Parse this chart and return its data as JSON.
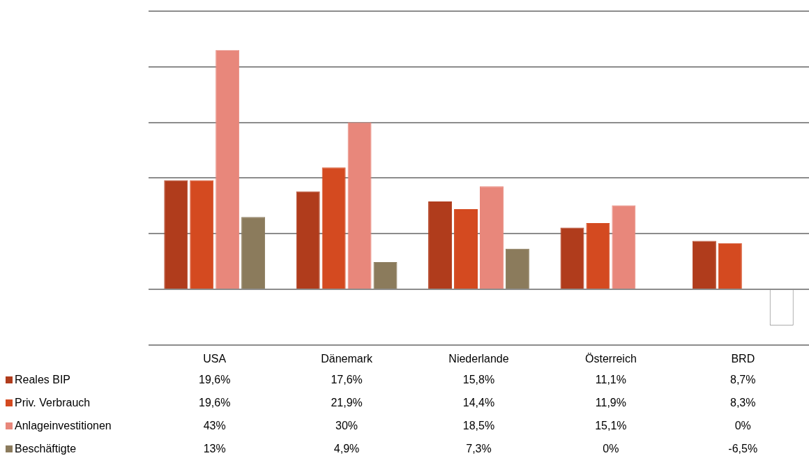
{
  "chart_data": {
    "type": "bar",
    "categories": [
      "USA",
      "Dänemark",
      "Niederlande",
      "Österreich",
      "BRD"
    ],
    "series": [
      {
        "name": "Reales BIP",
        "color": "#b03c1c",
        "values": [
          19.6,
          17.6,
          15.8,
          11.1,
          8.7
        ],
        "value_labels": [
          "19,6%",
          "17,6%",
          "15,8%",
          "11,1%",
          "8,7%"
        ]
      },
      {
        "name": "Priv. Verbrauch",
        "color": "#d44a20",
        "values": [
          19.6,
          21.9,
          14.4,
          11.9,
          8.3
        ],
        "value_labels": [
          "19,6%",
          "21,9%",
          "14,4%",
          "11,9%",
          "8,3%"
        ]
      },
      {
        "name": "Anlageinvestitionen",
        "color": "#e8877b",
        "values": [
          43,
          30,
          18.5,
          15.1,
          0
        ],
        "value_labels": [
          "43%",
          "30%",
          "18,5%",
          "15,1%",
          "0%"
        ]
      },
      {
        "name": "Beschäftigte",
        "color": "#8b7b5c",
        "colors": [
          "#8b7b5c",
          "#8b7b5c",
          "#8b7b5c",
          "#8b7b5c",
          "#ffffff"
        ],
        "values": [
          13,
          4.9,
          7.3,
          0,
          -6.5
        ],
        "value_labels": [
          "13%",
          "4,9%",
          "7,3%",
          "0%",
          "-6,5%"
        ]
      }
    ],
    "ylim": [
      -10,
      50
    ],
    "yticks": [
      {
        "value": -10,
        "label": null
      },
      {
        "value": 0,
        "label": null
      },
      {
        "value": 10,
        "label": null
      },
      {
        "value": 20,
        "label": null
      },
      {
        "value": 30,
        "label": null
      },
      {
        "value": 40,
        "label": null
      },
      {
        "value": 50,
        "label": null
      }
    ],
    "tick_labels": "x",
    "grid": "y",
    "legend": "bottom left"
  }
}
